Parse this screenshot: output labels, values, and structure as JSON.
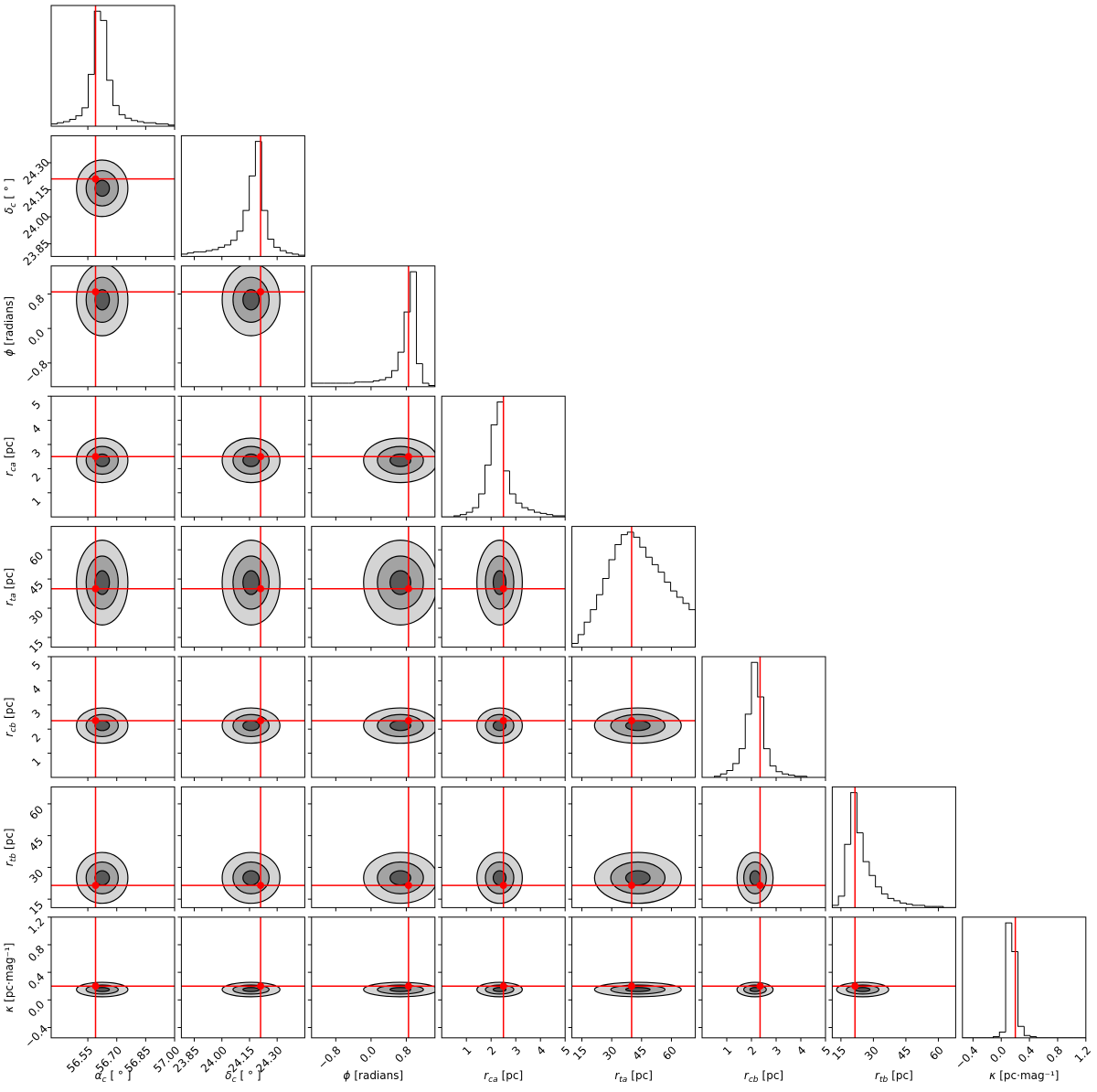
{
  "chart_data": {
    "type": "corner",
    "parameters": [
      {
        "symbol": "α",
        "sub": "c",
        "unit": "[ ° ]",
        "lim": [
          56.36,
          57.0
        ],
        "ticks": [
          56.55,
          {
            "value": 56.7,
            "label": "56.70"
          },
          56.85,
          {
            "value": 57.0,
            "label": "57.00"
          }
        ],
        "truth": 56.59,
        "bins": [
          56.36,
          56.392,
          56.424,
          56.456,
          56.488,
          56.52,
          56.552,
          56.584,
          56.616,
          56.648,
          56.68,
          56.712,
          56.744,
          56.776,
          56.808,
          56.84,
          56.872,
          56.904,
          56.936,
          56.968,
          57.0
        ],
        "counts": [
          2,
          3,
          4,
          6,
          9,
          16,
          45,
          100,
          92,
          40,
          18,
          10,
          7,
          5,
          4,
          3,
          3,
          2,
          2,
          1
        ]
      },
      {
        "symbol": "δ",
        "sub": "c",
        "unit": "[ ° ]",
        "lim": [
          23.78,
          24.45
        ],
        "ticks": [
          23.85,
          {
            "value": 24.0,
            "label": "24.00"
          },
          24.15,
          {
            "value": 24.3,
            "label": "24.30"
          }
        ],
        "truth": 24.21,
        "bins": [
          23.78,
          23.8135,
          23.847,
          23.8805,
          23.914,
          23.9475,
          23.981,
          24.0145,
          24.048,
          24.0815,
          24.115,
          24.1485,
          24.182,
          24.2155,
          24.249,
          24.2825,
          24.316,
          24.3495,
          24.383,
          24.4165,
          24.45
        ],
        "counts": [
          2,
          3,
          4,
          4,
          5,
          6,
          8,
          10,
          14,
          22,
          40,
          70,
          100,
          40,
          15,
          8,
          5,
          3,
          2,
          1
        ]
      },
      {
        "symbol": "ϕ",
        "unit": "[radians]",
        "lim": [
          -1.35,
          1.45
        ],
        "ticks": [
          {
            "value": -0.8,
            "label": "−0.8"
          },
          {
            "value": 0,
            "label": "0.0"
          },
          0.8
        ],
        "truth": 0.85,
        "bins": [
          -1.35,
          -1.21,
          -1.07,
          -0.93,
          -0.79,
          -0.65,
          -0.51,
          -0.37,
          -0.23,
          -0.09,
          0.05,
          0.19,
          0.33,
          0.47,
          0.61,
          0.75,
          0.89,
          1.03,
          1.17,
          1.31,
          1.45
        ],
        "counts": [
          3,
          3,
          3,
          3,
          3,
          3,
          3,
          4,
          4,
          4,
          5,
          6,
          8,
          14,
          30,
          65,
          100,
          20,
          3,
          1
        ]
      },
      {
        "symbol": "r",
        "sub": "ca",
        "unit": "[pc]",
        "lim": [
          0,
          5
        ],
        "ticks": [
          1,
          2,
          3,
          4,
          5
        ],
        "truth": 2.5,
        "bins": [
          0,
          0.25,
          0.5,
          0.75,
          1,
          1.25,
          1.5,
          1.75,
          2,
          2.25,
          2.5,
          2.75,
          3,
          3.25,
          3.5,
          3.75,
          4,
          4.25,
          4.5,
          4.75,
          5
        ],
        "counts": [
          0,
          0,
          1,
          2,
          4,
          8,
          20,
          45,
          80,
          100,
          40,
          20,
          12,
          8,
          6,
          4,
          3,
          2,
          1,
          1
        ]
      },
      {
        "symbol": "r",
        "sub": "ta",
        "unit": "[pc]",
        "lim": [
          10,
          72
        ],
        "ticks": [
          15,
          30,
          45,
          60
        ],
        "truth": 40,
        "bins": [
          10,
          13.1,
          16.2,
          19.3,
          22.4,
          25.5,
          28.6,
          31.7,
          34.8,
          37.9,
          41,
          44.1,
          47.2,
          50.3,
          53.4,
          56.5,
          59.6,
          62.7,
          65.8,
          68.9,
          72
        ],
        "counts": [
          3,
          10,
          20,
          30,
          42,
          55,
          70,
          82,
          90,
          92,
          88,
          80,
          72,
          66,
          60,
          52,
          45,
          40,
          35,
          30
        ]
      },
      {
        "symbol": "r",
        "sub": "cb",
        "unit": "[pc]",
        "lim": [
          0,
          5
        ],
        "ticks": [
          1,
          2,
          3,
          4,
          5
        ],
        "truth": 2.35,
        "bins": [
          0,
          0.25,
          0.5,
          0.75,
          1,
          1.25,
          1.5,
          1.75,
          2,
          2.25,
          2.5,
          2.75,
          3,
          3.25,
          3.5,
          3.75,
          4,
          4.25,
          4.5,
          4.75,
          5
        ],
        "counts": [
          0,
          0,
          1,
          3,
          6,
          12,
          25,
          55,
          100,
          70,
          25,
          10,
          5,
          3,
          2,
          1,
          1,
          0,
          0,
          0
        ]
      },
      {
        "symbol": "r",
        "sub": "tb",
        "unit": "[pc]",
        "lim": [
          11,
          68
        ],
        "ticks": [
          15,
          30,
          45,
          60
        ],
        "truth": 21.5,
        "bins": [
          11,
          13.85,
          16.7,
          19.55,
          22.4,
          25.25,
          28.1,
          30.95,
          33.8,
          36.65,
          39.5,
          42.35,
          45.2,
          48.05,
          50.9,
          53.75,
          56.6,
          59.45,
          62.3,
          65.15,
          68
        ],
        "counts": [
          2,
          10,
          55,
          100,
          65,
          40,
          28,
          18,
          12,
          8,
          6,
          4,
          3,
          2,
          2,
          1,
          1,
          1,
          0,
          0
        ]
      },
      {
        "symbol": "κ",
        "unit": "[pc·mag⁻¹]",
        "lim": [
          -0.55,
          1.2
        ],
        "ticks": [
          {
            "value": -0.4,
            "label": "−0.4"
          },
          {
            "value": 0,
            "label": "0.0"
          },
          0.4,
          0.8,
          1.2
        ],
        "truth": 0.2,
        "bins": [
          -0.55,
          -0.4625,
          -0.375,
          -0.2875,
          -0.2,
          -0.1125,
          -0.025,
          0.0625,
          0.15,
          0.2375,
          0.325,
          0.4125,
          0.5,
          0.5875,
          0.675,
          0.7625,
          0.85,
          0.9375,
          1.025,
          1.1125,
          1.2
        ],
        "counts": [
          0,
          0,
          0,
          0,
          0,
          1,
          5,
          100,
          75,
          10,
          2,
          1,
          0,
          0,
          0,
          0,
          0,
          0,
          0,
          0
        ]
      }
    ],
    "truth_color": "#ff0000",
    "contour_colors": [
      "#d4d4d4",
      "#a3a3a3",
      "#595959"
    ]
  }
}
